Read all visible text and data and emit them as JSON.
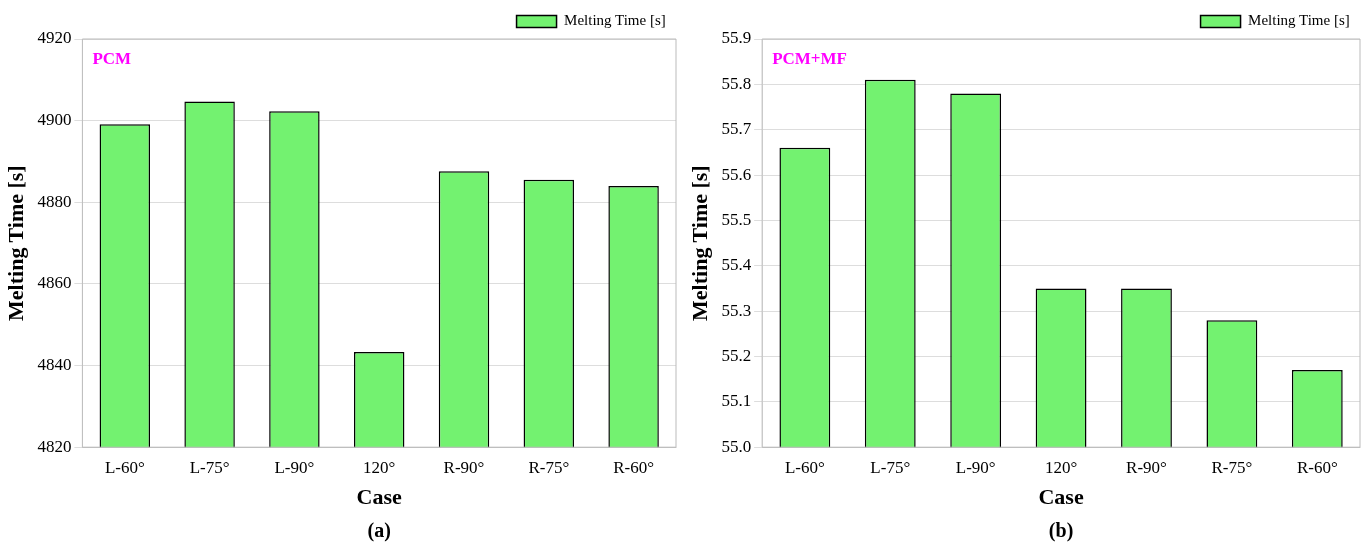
{
  "chart_data": [
    {
      "type": "bar",
      "categories": [
        "L-60°",
        "L-75°",
        "L-90°",
        "120°",
        "R-90°",
        "R-75°",
        "R-60°"
      ],
      "series": [
        {
          "name": "Melting Time [s]",
          "color": "#73f270",
          "values": [
            4899.1,
            4904.7,
            4902.3,
            4843.3,
            4887.6,
            4885.5,
            4884.0
          ]
        }
      ],
      "xlabel": "Case",
      "ylabel": "Melting Time [s]",
      "ylim": [
        4820,
        4920
      ],
      "yticks": [
        4820,
        4840,
        4860,
        4880,
        4900,
        4920
      ],
      "grid": "y",
      "legend": "top right",
      "annotations": [
        "PCM",
        "(a)"
      ]
    },
    {
      "type": "bar",
      "categories": [
        "L-60°",
        "L-75°",
        "L-90°",
        "120°",
        "R-90°",
        "R-75°",
        "R-60°"
      ],
      "series": [
        {
          "name": "Melting Time [s]",
          "color": "#73f270",
          "values": [
            55.66,
            55.81,
            55.78,
            55.35,
            55.35,
            55.28,
            55.17
          ]
        }
      ],
      "xlabel": "Case",
      "ylabel": "Melting Time [s]",
      "ylim": [
        55.0,
        55.9
      ],
      "yticks": [
        {
          "value": 55.0,
          "label": "55.0"
        },
        55.1,
        55.2,
        55.3,
        55.4,
        55.5,
        55.6,
        55.7,
        55.8,
        55.9
      ],
      "grid": "y",
      "legend": "top right",
      "annotations": [
        "PCM+MF",
        "(b)"
      ]
    }
  ]
}
